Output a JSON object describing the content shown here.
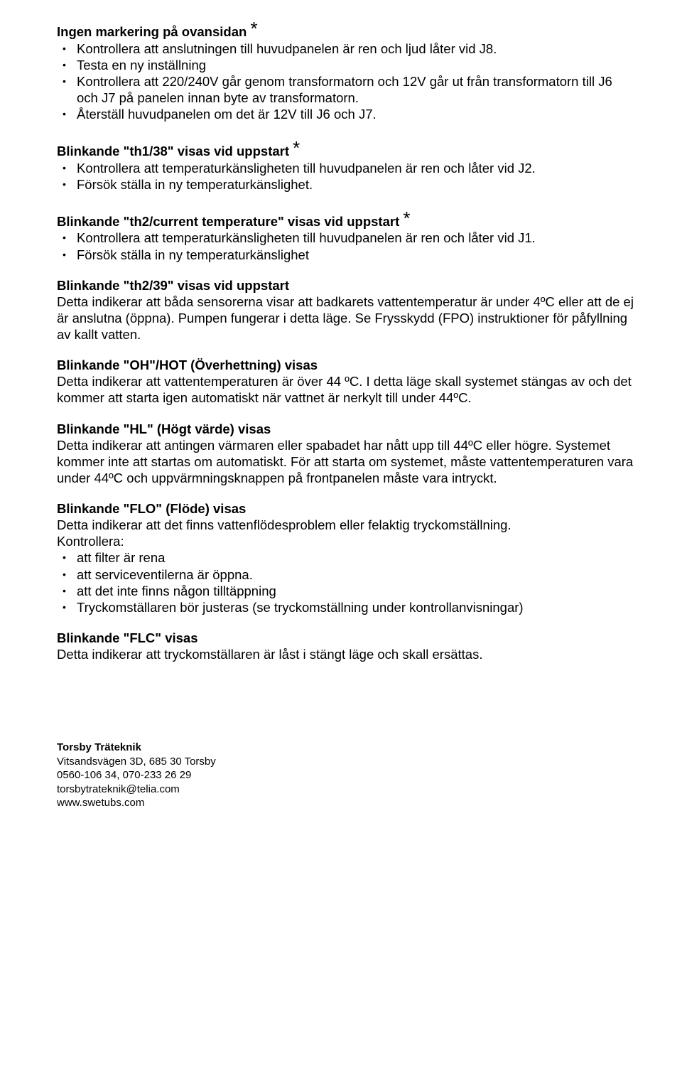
{
  "sections": [
    {
      "title": "Ingen markering på ovansidan",
      "asterisk": true,
      "bullets": [
        "Kontrollera att anslutningen till huvudpanelen är ren och ljud låter vid J8.",
        "Testa en ny inställning",
        "Kontrollera att 220/240V går genom transformatorn och 12V går ut från transformatorn till J6 och J7 på panelen innan byte av transformatorn.",
        "Återställ huvudpanelen om det är 12V till J6 och J7."
      ]
    },
    {
      "title": "Blinkande \"th1/38\" visas vid uppstart",
      "asterisk": true,
      "bullets": [
        "Kontrollera att temperaturkänsligheten till huvudpanelen är ren och låter vid J2.",
        "Försök ställa in ny temperaturkänslighet."
      ]
    },
    {
      "title": "Blinkande \"th2/current temperature\" visas vid uppstart",
      "asterisk": true,
      "bullets": [
        "Kontrollera att temperaturkänsligheten till huvudpanelen är ren och låter vid J1.",
        "Försök ställa in ny temperaturkänslighet"
      ]
    },
    {
      "title": "Blinkande \"th2/39\" visas vid uppstart",
      "asterisk": false,
      "body": "Detta indikerar att båda sensorerna visar att badkarets vattentemperatur är under 4ºC eller att de ej är anslutna (öppna). Pumpen fungerar i detta läge. Se Frysskydd (FPO) instruktioner för påfyllning av kallt vatten."
    },
    {
      "title": "Blinkande \"OH\"/HOT (Överhettning) visas",
      "asterisk": false,
      "body": "Detta indikerar att vattentemperaturen är över 44 ºC. I detta läge skall systemet stängas av och det kommer att starta igen automatiskt när vattnet är nerkylt till under 44ºC."
    },
    {
      "title": "Blinkande \"HL\" (Högt värde) visas",
      "asterisk": false,
      "body": "Detta indikerar att antingen värmaren eller spabadet har nått upp till 44ºC eller högre. Systemet kommer inte att startas om automatiskt. För att starta om systemet, måste vattentemperaturen vara under 44ºC och uppvärmningsknappen på frontpanelen måste vara intryckt."
    },
    {
      "title": "Blinkande \"FLO\" (Flöde) visas",
      "asterisk": false,
      "body": "Detta indikerar att det finns vattenflödesproblem eller felaktig tryckomställning.",
      "label": "Kontrollera:",
      "bullets": [
        "att filter är rena",
        "att serviceventilerna är öppna.",
        "att det inte finns någon tilltäppning",
        "Tryckomställaren bör justeras (se tryckomställning under kontrollanvisningar)"
      ]
    },
    {
      "title": "Blinkande \"FLC\" visas",
      "asterisk": false,
      "body": "Detta indikerar att tryckomställaren är låst i stängt läge och skall ersättas."
    }
  ],
  "footer": {
    "org": "Torsby Träteknik",
    "address": "Vitsandsvägen 3D, 685 30 Torsby",
    "phones": "0560-106 34, 070-233 26 29",
    "email": "torsbytrateknik@telia.com",
    "web": "www.swetubs.com"
  }
}
